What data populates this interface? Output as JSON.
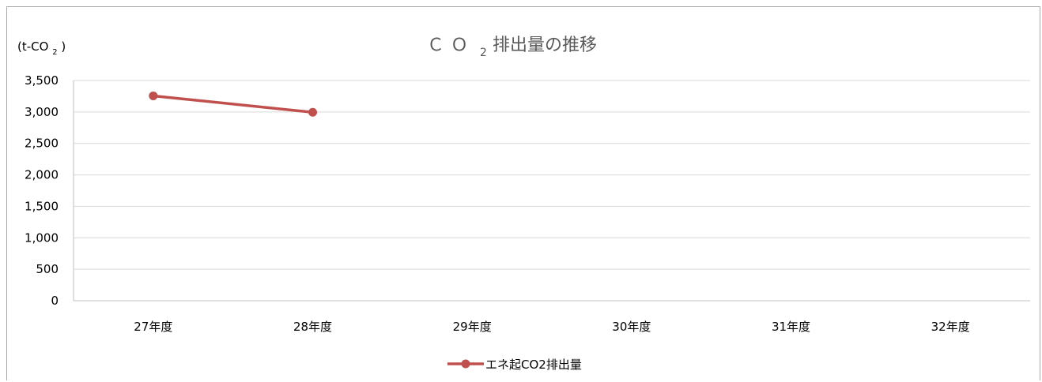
{
  "chart_data": {
    "type": "line",
    "title_main": "ＣＯ",
    "title_sub": "2",
    "title_rest": "排出量の推移",
    "unit_label_main": "(t-CO",
    "unit_label_sub": "2",
    "unit_label_end": ")",
    "categories": [
      "27年度",
      "28年度",
      "29年度",
      "30年度",
      "31年度",
      "32年度"
    ],
    "series": [
      {
        "name": "エネ起CO2排出量",
        "values": [
          3256,
          2995,
          null,
          null,
          null,
          null
        ],
        "color": "#c0504d"
      }
    ],
    "ylim": [
      0,
      3500
    ],
    "yticks": [
      0,
      500,
      1000,
      1500,
      2000,
      2500,
      3000,
      3500
    ],
    "ytick_labels": [
      "0",
      "500",
      "1,000",
      "1,500",
      "2,000",
      "2,500",
      "3,000",
      "3,500"
    ],
    "grid": true,
    "legend_position": "bottom"
  }
}
